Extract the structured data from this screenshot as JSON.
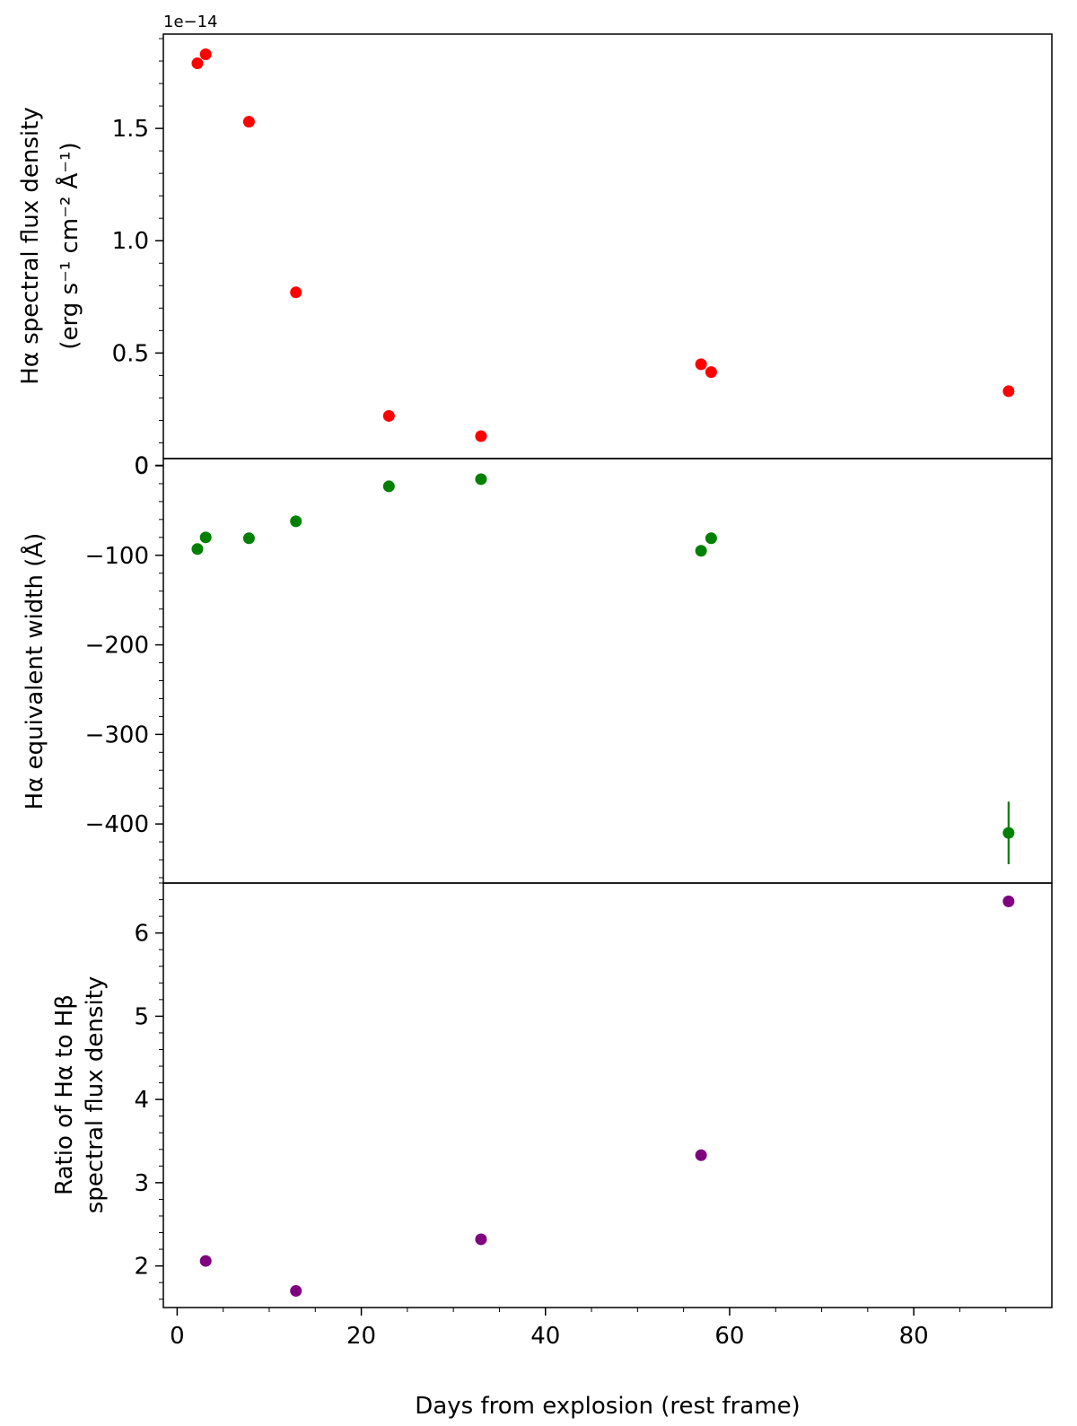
{
  "chart_data": {
    "type": "scatter",
    "layout": "three vertically stacked panels sharing the x axis",
    "xlabel": "Days from explosion (rest frame)",
    "xlim": [
      -1.5,
      95
    ],
    "xticks": [
      0,
      20,
      40,
      60,
      80
    ],
    "xtick_labels": [
      "0",
      "20",
      "40",
      "60",
      "80"
    ],
    "panels": [
      {
        "id": "flux",
        "ylabel_line1": "Hα spectral flux density",
        "ylabel_line2": "(erg s⁻¹ cm⁻² Å⁻¹)",
        "offset_text": "1e−14",
        "ylim": [
          0.03,
          1.92
        ],
        "yticks": [
          0,
          0.5,
          1.0,
          1.5
        ],
        "ytick_labels": [
          "0",
          "0.5",
          "1.0",
          "1.5"
        ],
        "color": "#ff0000",
        "points": [
          {
            "x": 2.2,
            "y": 1.79
          },
          {
            "x": 3.1,
            "y": 1.83
          },
          {
            "x": 7.8,
            "y": 1.53
          },
          {
            "x": 12.9,
            "y": 0.77
          },
          {
            "x": 23.0,
            "y": 0.22
          },
          {
            "x": 33.0,
            "y": 0.13
          },
          {
            "x": 56.9,
            "y": 0.45
          },
          {
            "x": 58.0,
            "y": 0.415
          },
          {
            "x": 90.3,
            "y": 0.33
          }
        ]
      },
      {
        "id": "ew",
        "ylabel_line1": "Hα equivalent width (Å)",
        "ylim": [
          -466,
          8
        ],
        "yticks": [
          0,
          -100,
          -200,
          -300,
          -400
        ],
        "ytick_labels": [
          "0",
          "−100",
          "−200",
          "−300",
          "−400"
        ],
        "color": "#008000",
        "points": [
          {
            "x": 2.2,
            "y": -93
          },
          {
            "x": 3.1,
            "y": -80
          },
          {
            "x": 7.8,
            "y": -81
          },
          {
            "x": 12.9,
            "y": -62
          },
          {
            "x": 23.0,
            "y": -23
          },
          {
            "x": 33.0,
            "y": -15
          },
          {
            "x": 56.9,
            "y": -95
          },
          {
            "x": 58.0,
            "y": -81
          },
          {
            "x": 90.3,
            "y": -410,
            "yerr": 35
          }
        ]
      },
      {
        "id": "ratio",
        "ylabel_line1": "Ratio of Hα to Hβ",
        "ylabel_line2": "spectral flux density",
        "ylim": [
          1.5,
          6.6
        ],
        "yticks": [
          2,
          3,
          4,
          5,
          6
        ],
        "ytick_labels": [
          "2",
          "3",
          "4",
          "5",
          "6"
        ],
        "color": "#800080",
        "points": [
          {
            "x": 3.1,
            "y": 2.06
          },
          {
            "x": 12.9,
            "y": 1.7
          },
          {
            "x": 33.0,
            "y": 2.32
          },
          {
            "x": 56.9,
            "y": 3.33
          },
          {
            "x": 90.3,
            "y": 6.38
          }
        ]
      }
    ]
  }
}
